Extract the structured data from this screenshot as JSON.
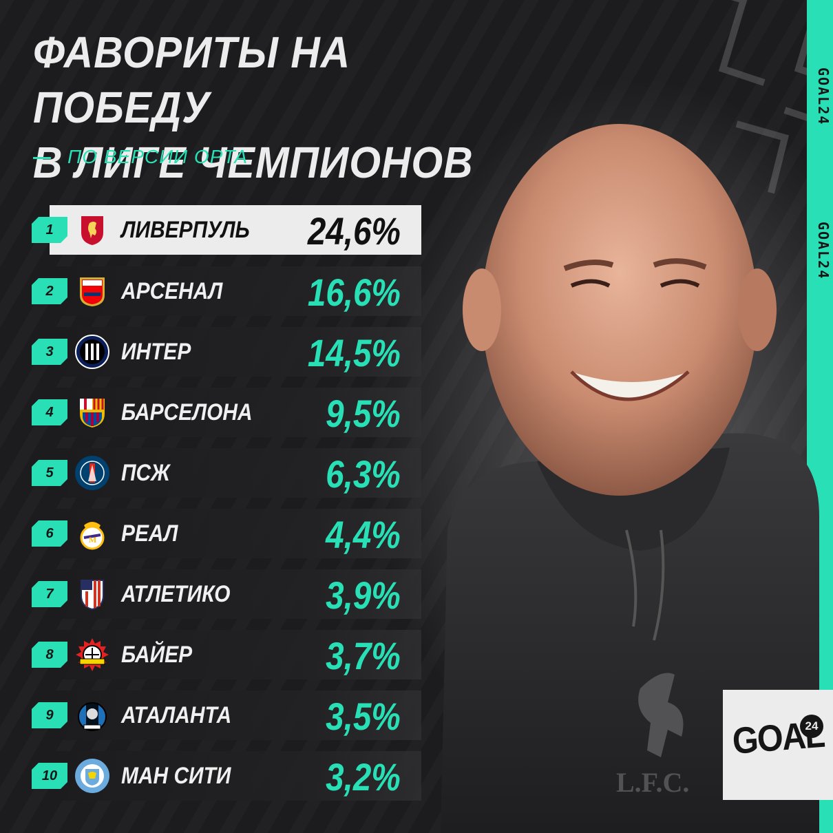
{
  "title_line1": "ФАВОРИТЫ НА ПОБЕДУ",
  "title_line2": "В ЛИГЕ ЧЕМПИОНОВ",
  "subtitle": "ПО ВЕРСИИ OPTA",
  "brand_vertical": [
    "GOAL24",
    "GOAL24"
  ],
  "logo_brand": {
    "word": "GOAL",
    "number": "24"
  },
  "colors": {
    "accent": "#29e0b6",
    "background": "#1a1a1c",
    "highlight_row": "#ececec",
    "text": "#f0f0f0"
  },
  "ranking": [
    {
      "rank": "1",
      "club": "ЛИВЕРПУЛЬ",
      "percent": "24,6%",
      "crest": "liverpool-crest-icon"
    },
    {
      "rank": "2",
      "club": "АРСЕНАЛ",
      "percent": "16,6%",
      "crest": "arsenal-crest-icon"
    },
    {
      "rank": "3",
      "club": "ИНТЕР",
      "percent": "14,5%",
      "crest": "inter-crest-icon"
    },
    {
      "rank": "4",
      "club": "БАРСЕЛОНА",
      "percent": "9,5%",
      "crest": "barcelona-crest-icon"
    },
    {
      "rank": "5",
      "club": "ПСЖ",
      "percent": "6,3%",
      "crest": "psg-crest-icon"
    },
    {
      "rank": "6",
      "club": "РЕАЛ",
      "percent": "4,4%",
      "crest": "real-madrid-crest-icon"
    },
    {
      "rank": "7",
      "club": "АТЛЕТИКО",
      "percent": "3,9%",
      "crest": "atletico-crest-icon"
    },
    {
      "rank": "8",
      "club": "БАЙЕР",
      "percent": "3,7%",
      "crest": "bayer-crest-icon"
    },
    {
      "rank": "9",
      "club": "АТАЛАНТА",
      "percent": "3,5%",
      "crest": "atalanta-crest-icon"
    },
    {
      "rank": "10",
      "club": "МАН СИТИ",
      "percent": "3,2%",
      "crest": "man-city-crest-icon"
    }
  ]
}
